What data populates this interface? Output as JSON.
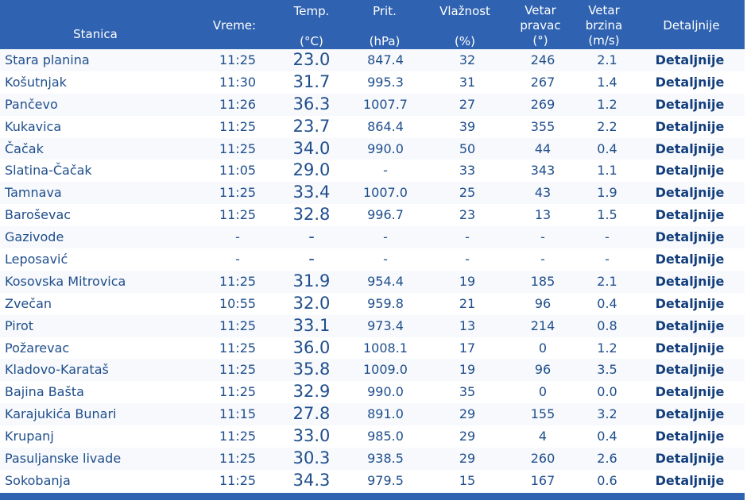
{
  "header": {
    "station": "Stanica",
    "time": "Vreme:",
    "temp_title": "Temp.",
    "temp_unit": "(°C)",
    "pres_title": "Prit.",
    "pres_unit": "(hPa)",
    "hum_title": "Vlažnost",
    "hum_unit": "(%)",
    "dir_line1": "Vetar",
    "dir_line2": "pravac",
    "dir_unit": "(°)",
    "spd_line1": "Vetar",
    "spd_line2": "brzina",
    "spd_unit": "(m/s)",
    "details": "Detaljnije"
  },
  "rows": [
    {
      "station": "Stara planina",
      "time": "11:25",
      "temp": "23.0",
      "pres": "847.4",
      "hum": "32",
      "dir": "246",
      "spd": "2.1",
      "details": "Detaljnije"
    },
    {
      "station": "Košutnjak",
      "time": "11:30",
      "temp": "31.7",
      "pres": "995.3",
      "hum": "31",
      "dir": "267",
      "spd": "1.4",
      "details": "Detaljnije"
    },
    {
      "station": "Pančevo",
      "time": "11:26",
      "temp": "36.3",
      "pres": "1007.7",
      "hum": "27",
      "dir": "269",
      "spd": "1.2",
      "details": "Detaljnije"
    },
    {
      "station": "Kukavica",
      "time": "11:25",
      "temp": "23.7",
      "pres": "864.4",
      "hum": "39",
      "dir": "355",
      "spd": "2.2",
      "details": "Detaljnije"
    },
    {
      "station": "Čačak",
      "time": "11:25",
      "temp": "34.0",
      "pres": "990.0",
      "hum": "50",
      "dir": "44",
      "spd": "0.4",
      "details": "Detaljnije"
    },
    {
      "station": "Slatina-Čačak",
      "time": "11:05",
      "temp": "29.0",
      "pres": "-",
      "hum": "33",
      "dir": "343",
      "spd": "1.1",
      "details": "Detaljnije"
    },
    {
      "station": "Tamnava",
      "time": "11:25",
      "temp": "33.4",
      "pres": "1007.0",
      "hum": "25",
      "dir": "43",
      "spd": "1.9",
      "details": "Detaljnije"
    },
    {
      "station": "Baroševac",
      "time": "11:25",
      "temp": "32.8",
      "pres": "996.7",
      "hum": "23",
      "dir": "13",
      "spd": "1.5",
      "details": "Detaljnije"
    },
    {
      "station": "Gazivode",
      "time": "-",
      "temp": "-",
      "pres": "-",
      "hum": "-",
      "dir": "-",
      "spd": "-",
      "details": "Detaljnije"
    },
    {
      "station": "Leposavić",
      "time": "-",
      "temp": "-",
      "pres": "-",
      "hum": "-",
      "dir": "-",
      "spd": "-",
      "details": "Detaljnije"
    },
    {
      "station": "Kosovska Mitrovica",
      "time": "11:25",
      "temp": "31.9",
      "pres": "954.4",
      "hum": "19",
      "dir": "185",
      "spd": "2.1",
      "details": "Detaljnije"
    },
    {
      "station": "Zvečan",
      "time": "10:55",
      "temp": "32.0",
      "pres": "959.8",
      "hum": "21",
      "dir": "96",
      "spd": "0.4",
      "details": "Detaljnije"
    },
    {
      "station": "Pirot",
      "time": "11:25",
      "temp": "33.1",
      "pres": "973.4",
      "hum": "13",
      "dir": "214",
      "spd": "0.8",
      "details": "Detaljnije"
    },
    {
      "station": "Požarevac",
      "time": "11:25",
      "temp": "36.0",
      "pres": "1008.1",
      "hum": "17",
      "dir": "0",
      "spd": "1.2",
      "details": "Detaljnije"
    },
    {
      "station": "Kladovo-Karataš",
      "time": "11:25",
      "temp": "35.8",
      "pres": "1009.0",
      "hum": "19",
      "dir": "96",
      "spd": "3.5",
      "details": "Detaljnije"
    },
    {
      "station": "Bajina Bašta",
      "time": "11:25",
      "temp": "32.9",
      "pres": "990.0",
      "hum": "35",
      "dir": "0",
      "spd": "0.0",
      "details": "Detaljnije"
    },
    {
      "station": "Karajukića Bunari",
      "time": "11:15",
      "temp": "27.8",
      "pres": "891.0",
      "hum": "29",
      "dir": "155",
      "spd": "3.2",
      "details": "Detaljnije"
    },
    {
      "station": "Krupanj",
      "time": "11:25",
      "temp": "33.0",
      "pres": "985.0",
      "hum": "29",
      "dir": "4",
      "spd": "0.4",
      "details": "Detaljnije"
    },
    {
      "station": "Pasuljanske livade",
      "time": "11:25",
      "temp": "30.3",
      "pres": "938.5",
      "hum": "29",
      "dir": "260",
      "spd": "2.6",
      "details": "Detaljnije"
    },
    {
      "station": "Sokobanja",
      "time": "11:25",
      "temp": "34.3",
      "pres": "979.5",
      "hum": "15",
      "dir": "167",
      "spd": "0.6",
      "details": "Detaljnije"
    }
  ],
  "colors": {
    "header_bg": "#2f62b0",
    "text": "#1f4e8c",
    "link": "#123e7d"
  }
}
